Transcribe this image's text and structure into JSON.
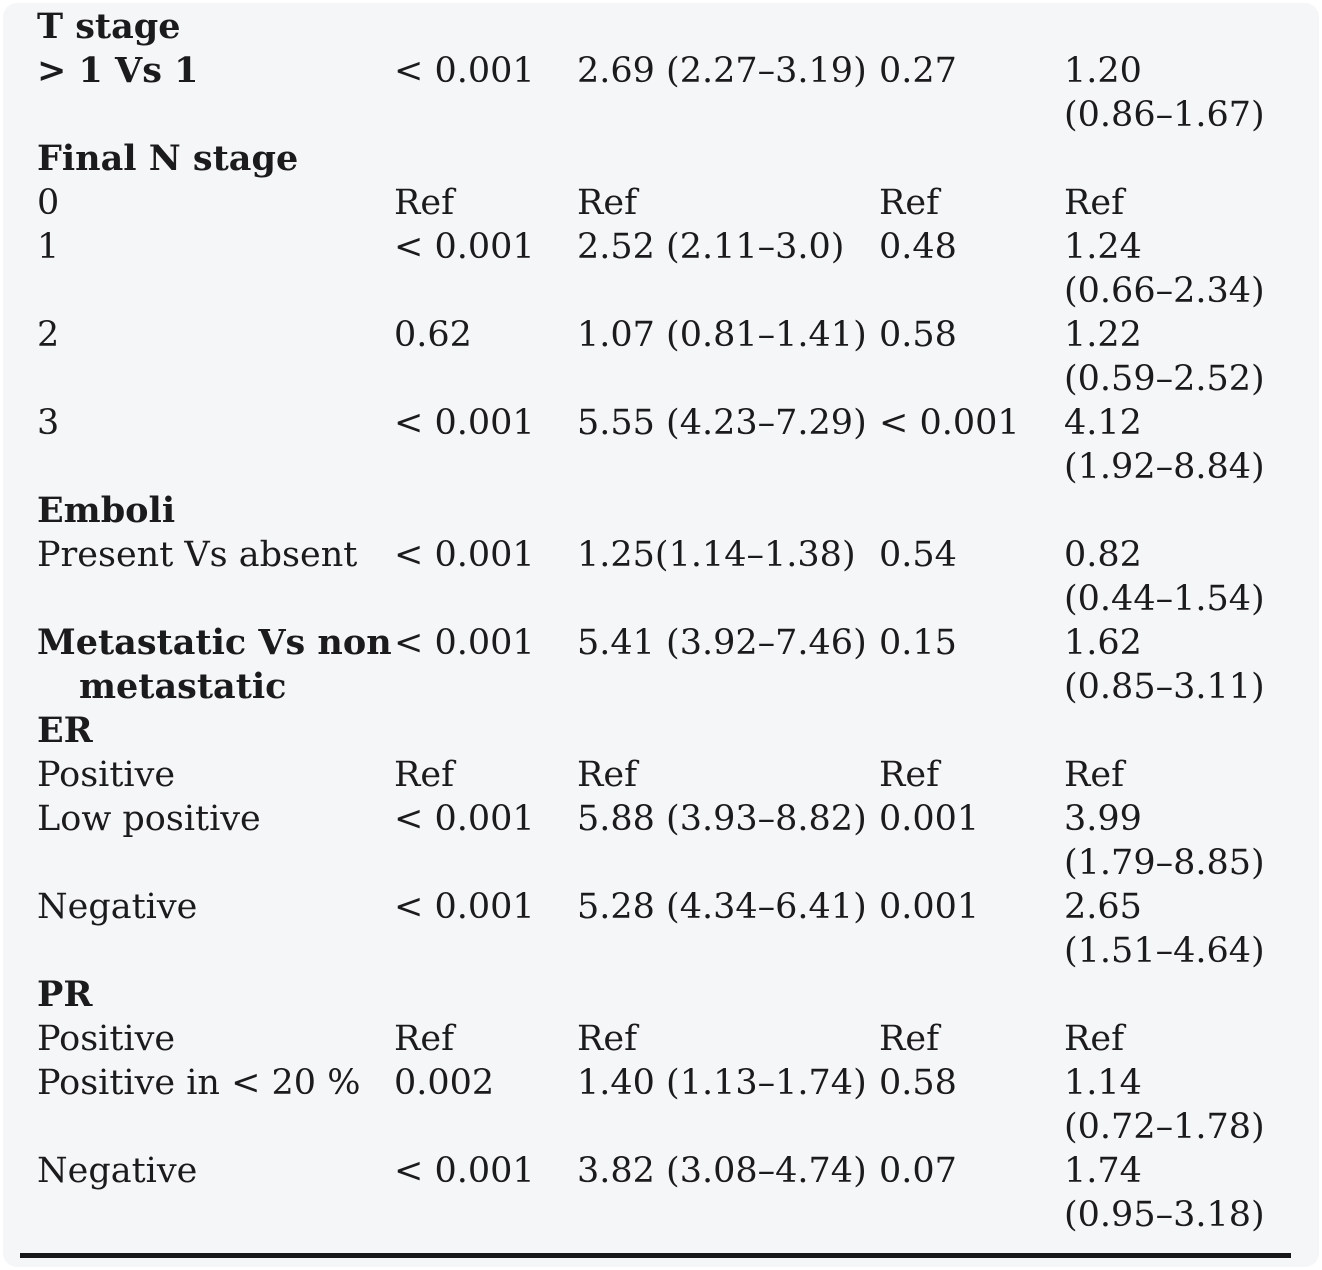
{
  "colors": {
    "page_background": "#ffffff",
    "panel_background": "#f5f6f8",
    "text": "#1b1b1e",
    "bottom_rule": "#17171a"
  },
  "table": {
    "rows": [
      {
        "type": "section",
        "label": "T stage"
      },
      {
        "type": "data",
        "label": "> 1 Vs 1",
        "p1": "< 0.001",
        "hr1": "2.69 (2.27–3.19)",
        "p2": "0.27",
        "hr2": "1.20",
        "ci2": "(0.86–1.67)"
      },
      {
        "type": "section",
        "label": "Final N stage"
      },
      {
        "type": "data",
        "label": "0",
        "p1": "Ref",
        "hr1": "Ref",
        "p2": "Ref",
        "hr2": "Ref",
        "ci2": ""
      },
      {
        "type": "data",
        "label": "1",
        "p1": "< 0.001",
        "hr1": "2.52 (2.11–3.0)",
        "p2": "0.48",
        "hr2": "1.24",
        "ci2": "(0.66–2.34)"
      },
      {
        "type": "data",
        "label": "2",
        "p1": "0.62",
        "hr1": "1.07 (0.81–1.41)",
        "p2": "0.58",
        "hr2": "1.22",
        "ci2": "(0.59–2.52)"
      },
      {
        "type": "data",
        "label": "3",
        "p1": "< 0.001",
        "hr1": "5.55 (4.23–7.29)",
        "p2": "< 0.001",
        "hr2": "4.12",
        "ci2": "(1.92–8.84)"
      },
      {
        "type": "section",
        "label": "Emboli"
      },
      {
        "type": "data",
        "label": "Present Vs absent",
        "p1": "< 0.001",
        "hr1": "1.25(1.14–1.38)",
        "p2": "0.54",
        "hr2": "0.82",
        "ci2": "(0.44–1.54)"
      },
      {
        "type": "data",
        "label": "Metastatic Vs non",
        "label2": "metastatic",
        "p1": "< 0.001",
        "hr1": "5.41 (3.92–7.46)",
        "p2": "0.15",
        "hr2": "1.62",
        "ci2": "(0.85–3.11)"
      },
      {
        "type": "section",
        "label": "ER"
      },
      {
        "type": "data",
        "label": "Positive",
        "p1": "Ref",
        "hr1": "Ref",
        "p2": "Ref",
        "hr2": "Ref",
        "ci2": ""
      },
      {
        "type": "data",
        "label": "Low positive",
        "p1": "< 0.001",
        "hr1": "5.88 (3.93–8.82)",
        "p2": "0.001",
        "hr2": "3.99",
        "ci2": "(1.79–8.85)"
      },
      {
        "type": "data",
        "label": "Negative",
        "p1": "< 0.001",
        "hr1": "5.28 (4.34–6.41)",
        "p2": "0.001",
        "hr2": "2.65",
        "ci2": "(1.51–4.64)"
      },
      {
        "type": "section",
        "label": "PR"
      },
      {
        "type": "data",
        "label": "Positive",
        "p1": "Ref",
        "hr1": "Ref",
        "p2": "Ref",
        "hr2": "Ref",
        "ci2": ""
      },
      {
        "type": "data",
        "label": "Positive in < 20 %",
        "p1": "0.002",
        "hr1": "1.40 (1.13–1.74)",
        "p2": "0.58",
        "hr2": "1.14",
        "ci2": "(0.72–1.78)"
      },
      {
        "type": "data",
        "label": "Negative",
        "p1": "< 0.001",
        "hr1": "3.82 (3.08–4.74)",
        "p2": "0.07",
        "hr2": "1.74",
        "ci2": "(0.95–3.18)"
      }
    ]
  }
}
